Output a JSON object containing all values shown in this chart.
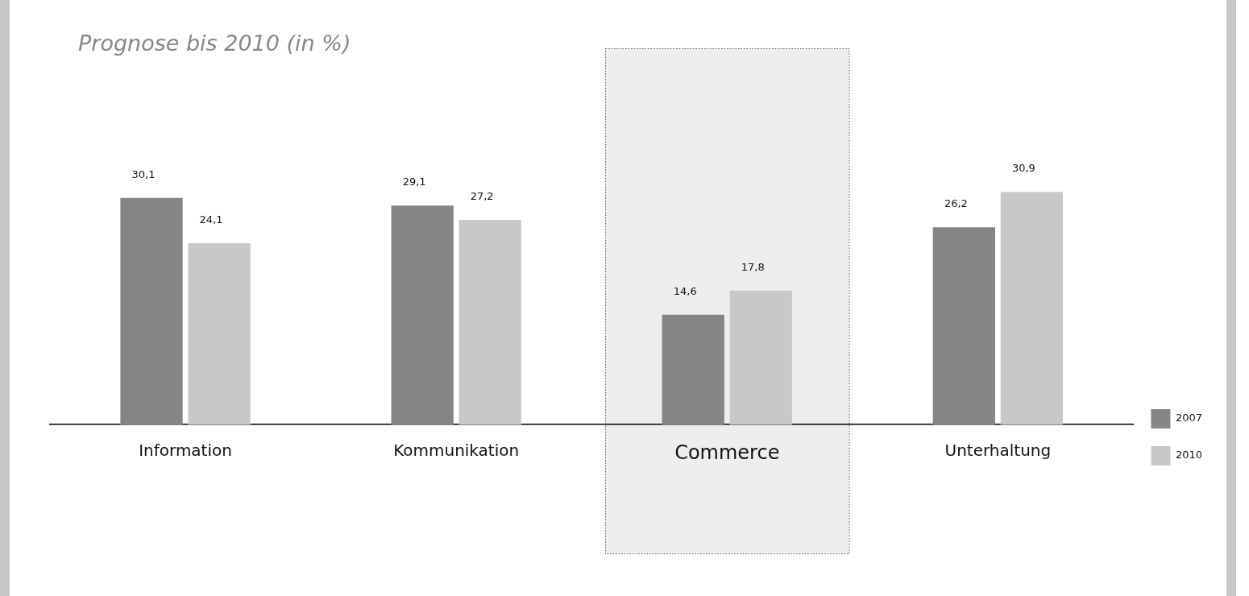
{
  "chart_data": {
    "type": "bar",
    "title": "Prognose bis 2010 (in %)",
    "categories": [
      "Information",
      "Kommunikation",
      "Commerce",
      "Unterhaltung"
    ],
    "series": [
      {
        "name": "2007",
        "color": "#858585",
        "values": [
          30.1,
          29.1,
          14.6,
          26.2
        ],
        "value_labels": [
          "30,1",
          "29,1",
          "14,6",
          "26,2"
        ]
      },
      {
        "name": "2010",
        "color": "#c8c8c8",
        "values": [
          24.1,
          27.2,
          17.8,
          30.9
        ],
        "value_labels": [
          "24,1",
          "27,2",
          "17,8",
          "30,9"
        ]
      }
    ],
    "bands": [
      {
        "axis": "x",
        "from": "Commerce",
        "to": "Commerce",
        "color": "#eeeeee"
      }
    ],
    "legend": "right",
    "grid": false,
    "tick_labels": "x"
  }
}
